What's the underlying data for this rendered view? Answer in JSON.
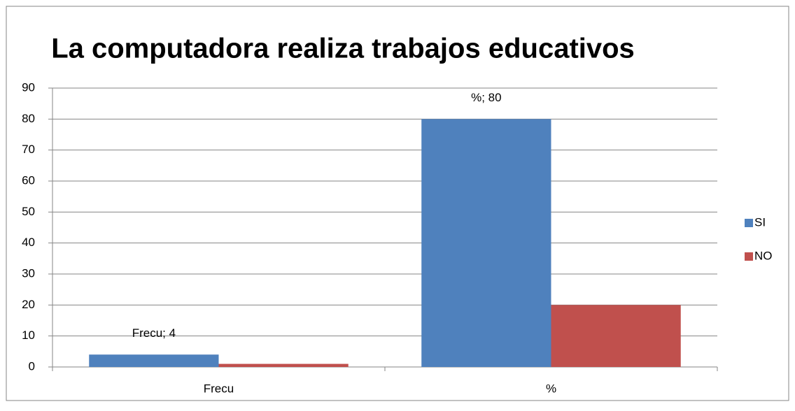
{
  "chart_data": {
    "type": "bar",
    "title": "La computadora realiza trabajos educativos",
    "categories": [
      "Frecu",
      "%"
    ],
    "series": [
      {
        "name": "SI",
        "color": "#4f81bd",
        "values": [
          4,
          80
        ],
        "value_labels": [
          "Frecu; 4",
          "%; 80"
        ]
      },
      {
        "name": "NO",
        "color": "#c0504d",
        "values": [
          1,
          20
        ]
      }
    ],
    "ylim": [
      0,
      90
    ],
    "yticks": [
      0,
      10,
      20,
      30,
      40,
      50,
      60,
      70,
      80,
      90
    ],
    "grid": true,
    "legend": "right"
  }
}
